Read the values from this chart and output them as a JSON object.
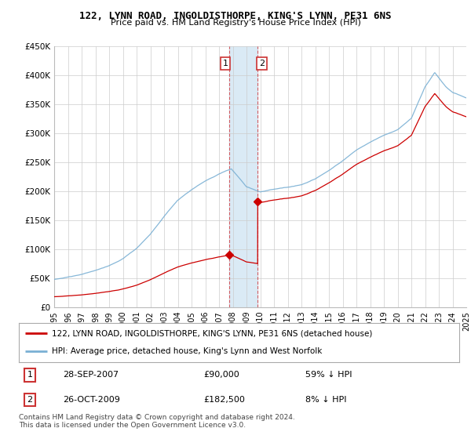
{
  "title": "122, LYNN ROAD, INGOLDISTHORPE, KING'S LYNN, PE31 6NS",
  "subtitle": "Price paid vs. HM Land Registry's House Price Index (HPI)",
  "legend_line1": "122, LYNN ROAD, INGOLDISTHORPE, KING'S LYNN, PE31 6NS (detached house)",
  "legend_line2": "HPI: Average price, detached house, King's Lynn and West Norfolk",
  "footer": "Contains HM Land Registry data © Crown copyright and database right 2024.\nThis data is licensed under the Open Government Licence v3.0.",
  "transaction1_date": "28-SEP-2007",
  "transaction1_price": "£90,000",
  "transaction1_hpi": "59% ↓ HPI",
  "transaction2_date": "26-OCT-2009",
  "transaction2_price": "£182,500",
  "transaction2_hpi": "8% ↓ HPI",
  "hpi_color": "#7ab0d4",
  "price_color": "#cc0000",
  "highlight_color": "#daeaf5",
  "ylim": [
    0,
    450000
  ],
  "yticks": [
    0,
    50000,
    100000,
    150000,
    200000,
    250000,
    300000,
    350000,
    400000,
    450000
  ],
  "ytick_labels": [
    "£0",
    "£50K",
    "£100K",
    "£150K",
    "£200K",
    "£250K",
    "£300K",
    "£350K",
    "£400K",
    "£450K"
  ],
  "transaction1_x": 2007.75,
  "transaction1_y": 90000,
  "transaction2_x": 2009.82,
  "transaction2_y": 182500,
  "xmin": 1995,
  "xmax": 2025
}
